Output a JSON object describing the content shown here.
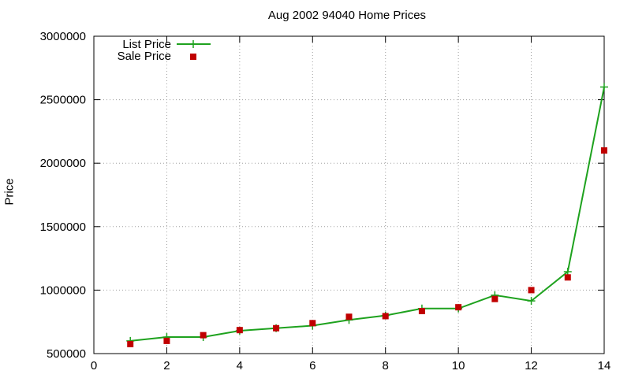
{
  "chart_data": {
    "type": "line",
    "title": "Aug 2002 94040 Home Prices",
    "xlabel": "",
    "ylabel": "Price",
    "xlim": [
      0,
      14
    ],
    "ylim": [
      500000,
      3000000
    ],
    "x_ticks": [
      "0",
      "2",
      "4",
      "6",
      "8",
      "10",
      "12",
      "14"
    ],
    "y_ticks": [
      "500000",
      "1000000",
      "1500000",
      "2000000",
      "2500000",
      "3000000"
    ],
    "grid": true,
    "legend_position": "top-left",
    "series": [
      {
        "name": "List Price",
        "style": "line+cross",
        "color": "#1ea21e",
        "x": [
          1,
          2,
          3,
          4,
          5,
          6,
          7,
          8,
          9,
          10,
          11,
          12,
          13,
          14
        ],
        "values": [
          600000,
          630000,
          630000,
          680000,
          700000,
          720000,
          765000,
          800000,
          855000,
          855000,
          960000,
          915000,
          1145000,
          2600000
        ]
      },
      {
        "name": "Sale Price",
        "style": "square",
        "color": "#c00000",
        "x": [
          1,
          2,
          3,
          4,
          5,
          6,
          7,
          8,
          9,
          10,
          11,
          12,
          13,
          14
        ],
        "values": [
          575000,
          600000,
          645000,
          685000,
          700000,
          740000,
          790000,
          795000,
          835000,
          865000,
          930000,
          1000000,
          1100000,
          2100000
        ]
      }
    ]
  }
}
